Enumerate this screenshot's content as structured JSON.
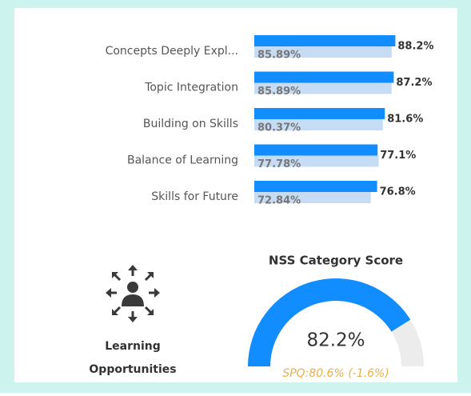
{
  "chart_data": [
    {
      "type": "bar",
      "orientation": "horizontal",
      "categories": [
        "Concepts Deeply Expl...",
        "Topic Integration",
        "Building on Skills",
        "Balance of Learning",
        "Skills for Future"
      ],
      "xlim": [
        0,
        100
      ],
      "series": [
        {
          "color": "#118dff",
          "values": [
            88.2,
            87.2,
            81.6,
            77.1,
            76.8
          ],
          "value_labels": [
            "88.2%",
            "87.2%",
            "81.6%",
            "77.1%",
            "76.8%"
          ]
        },
        {
          "color": "#c6dcf5",
          "values": [
            85.89,
            85.89,
            80.37,
            77.78,
            72.84
          ],
          "value_labels": [
            "85.89%",
            "85.89%",
            "80.37%",
            "77.78%",
            "72.84%"
          ]
        }
      ]
    },
    {
      "type": "gauge",
      "title": "NSS Category Score",
      "value": 82.2,
      "value_label": "82.2%",
      "ylim": [
        0,
        100
      ],
      "color": "#118dff",
      "track_color": "#ececec",
      "subtitle": "SPQ:80.6% (-1.6%)"
    }
  ],
  "icon_label": [
    "Learning",
    "Opportunities"
  ]
}
